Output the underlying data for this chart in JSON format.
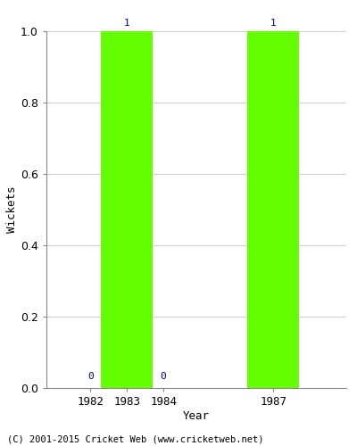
{
  "years": [
    1982,
    1983,
    1984,
    1987
  ],
  "wickets": [
    0,
    1,
    0,
    1
  ],
  "bar_color": "#66ff00",
  "bar_edge_color": "#66ff00",
  "label_color": "#000080",
  "xlabel": "Year",
  "ylabel": "Wickets",
  "ylim": [
    0.0,
    1.0
  ],
  "yticks": [
    0.0,
    0.2,
    0.4,
    0.6,
    0.8,
    1.0
  ],
  "background_color": "#ffffff",
  "grid_color": "#cccccc",
  "footer": "(C) 2001-2015 Cricket Web (www.cricketweb.net)",
  "bar_width": 1.4,
  "xlim": [
    1980.8,
    1989.0
  ]
}
